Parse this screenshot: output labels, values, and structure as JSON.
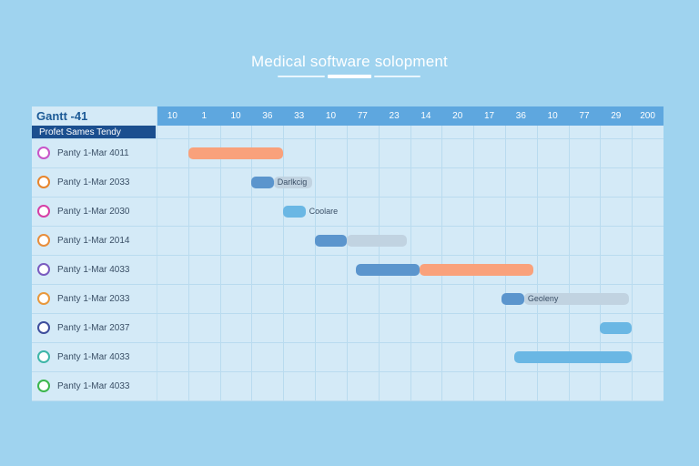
{
  "title": "Medical software solopment",
  "gantt_label": "Gantt -41",
  "subheader": "Profet Sames Tendy",
  "colors": {
    "background": "#9fd3ef",
    "header": "#5ea7df",
    "orange": "#f9a17b",
    "blue": "#5b95cd",
    "sky": "#6ab7e4",
    "gray": "#c1d3e1"
  },
  "chart_data": {
    "type": "gantt",
    "columns": [
      "10",
      "1",
      "10",
      "36",
      "33",
      "10",
      "77",
      "23",
      "14",
      "20",
      "17",
      "36",
      "10",
      "77",
      "29",
      "200"
    ],
    "tasks": [
      {
        "label": "Panty 1-Mar 4011",
        "icon_color": "#c855c8",
        "bars": [
          {
            "start": 1.0,
            "end": 4.0,
            "color": "#f9a17b"
          }
        ]
      },
      {
        "label": "Panty 1-Mar 2033",
        "icon_color": "#e8852c",
        "bars": [
          {
            "start": 3.0,
            "end": 3.7,
            "color": "#5b95cd"
          },
          {
            "start": 3.7,
            "end": 4.9,
            "color": "#c1d3e1"
          }
        ],
        "text": "Darlkcig"
      },
      {
        "label": "Panty 1-Mar 2030",
        "icon_color": "#d63fa6",
        "bars": [
          {
            "start": 4.0,
            "end": 4.7,
            "color": "#6ab7e4"
          }
        ],
        "text": "Coolare"
      },
      {
        "label": "Panty 1-Mar 2014",
        "icon_color": "#e88e3c",
        "bars": [
          {
            "start": 5.0,
            "end": 6.0,
            "color": "#5b95cd"
          },
          {
            "start": 6.0,
            "end": 7.9,
            "color": "#c1d3e1"
          }
        ]
      },
      {
        "label": "Panty 1-Mar 4033",
        "icon_color": "#7a5cc0",
        "bars": [
          {
            "start": 6.3,
            "end": 8.3,
            "color": "#5b95cd"
          },
          {
            "start": 8.3,
            "end": 11.9,
            "color": "#f9a17b"
          }
        ]
      },
      {
        "label": "Panty 1-Mar 2033",
        "icon_color": "#e8983c",
        "bars": [
          {
            "start": 10.9,
            "end": 11.6,
            "color": "#5b95cd"
          },
          {
            "start": 11.6,
            "end": 14.9,
            "color": "#c1d3e1"
          }
        ],
        "text": "Geoleny"
      },
      {
        "label": "Panty 1-Mar 2037",
        "icon_color": "#3e4e9c",
        "bars": [
          {
            "start": 14.0,
            "end": 15.0,
            "color": "#6ab7e4"
          }
        ]
      },
      {
        "label": "Panty 1-Mar 4033",
        "icon_color": "#3fb6a8",
        "bars": [
          {
            "start": 11.3,
            "end": 15.0,
            "color": "#6ab7e4"
          }
        ]
      },
      {
        "label": "Panty 1-Mar 4033",
        "icon_color": "#3cb64c",
        "bars": []
      }
    ]
  }
}
